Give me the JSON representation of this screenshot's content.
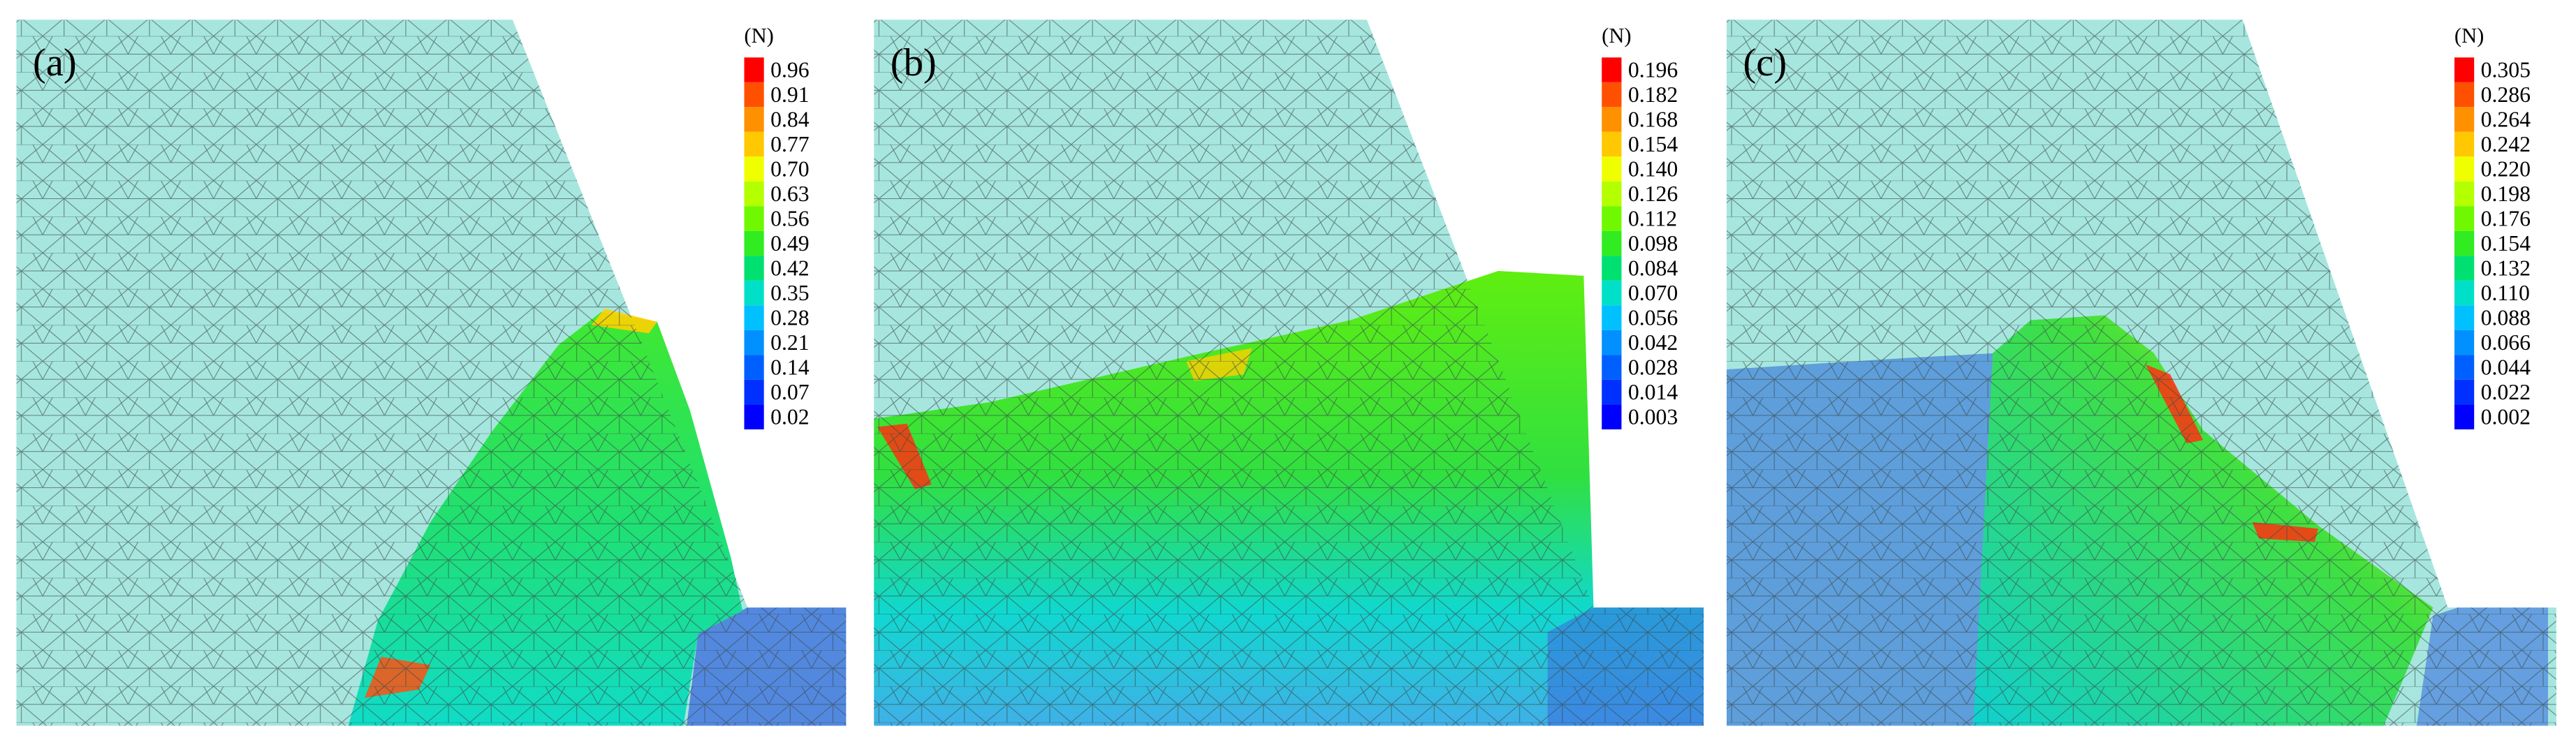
{
  "panels": [
    {
      "label": "(a)",
      "unit": "(N)",
      "scale": [
        "0.96",
        "0.91",
        "0.84",
        "0.77",
        "0.70",
        "0.63",
        "0.56",
        "0.49",
        "0.42",
        "0.35",
        "0.28",
        "0.21",
        "0.14",
        "0.07",
        "0.02"
      ]
    },
    {
      "label": "(b)",
      "unit": "(N)",
      "scale": [
        "0.196",
        "0.182",
        "0.168",
        "0.154",
        "0.140",
        "0.126",
        "0.112",
        "0.098",
        "0.084",
        "0.070",
        "0.056",
        "0.042",
        "0.028",
        "0.014",
        "0.003"
      ]
    },
    {
      "label": "(c)",
      "unit": "(N)",
      "scale": [
        "0.305",
        "0.286",
        "0.264",
        "0.242",
        "0.220",
        "0.198",
        "0.176",
        "0.154",
        "0.132",
        "0.110",
        "0.088",
        "0.066",
        "0.044",
        "0.022",
        "0.002"
      ]
    }
  ]
}
